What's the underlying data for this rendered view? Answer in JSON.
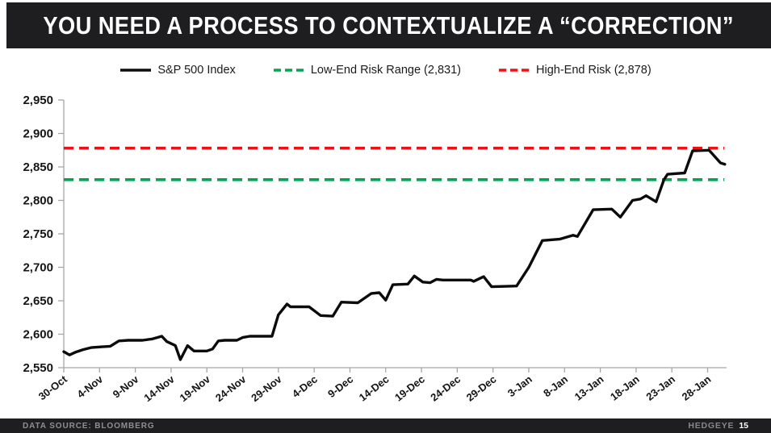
{
  "header": {
    "title": "YOU NEED A PROCESS TO CONTEXTUALIZE A “CORRECTION”"
  },
  "legend": {
    "items": [
      {
        "label": "S&P 500 Index",
        "color": "#0b0b0b",
        "style": "solid"
      },
      {
        "label": "Low-End Risk Range (2,831)",
        "color": "#00a651",
        "style": "dashed"
      },
      {
        "label": "High-End Risk (2,878)",
        "color": "#ef1016",
        "style": "dashed"
      }
    ]
  },
  "chart_data": {
    "type": "line",
    "title": "",
    "xlabel": "",
    "ylabel": "",
    "grid": false,
    "legend_position": "top",
    "y_axis": {
      "min": 2550,
      "max": 2950,
      "step": 50,
      "tick_labels": [
        "2,550",
        "2,600",
        "2,650",
        "2,700",
        "2,750",
        "2,800",
        "2,850",
        "2,900",
        "2,950"
      ]
    },
    "x_axis": {
      "tick_labels": [
        "30-Oct",
        "4-Nov",
        "9-Nov",
        "14-Nov",
        "19-Nov",
        "24-Nov",
        "29-Nov",
        "4-Dec",
        "9-Dec",
        "14-Dec",
        "19-Dec",
        "24-Dec",
        "29-Dec",
        "3-Jan",
        "8-Jan",
        "13-Jan",
        "18-Jan",
        "23-Jan",
        "28-Jan"
      ],
      "tick_days": [
        0,
        5,
        10,
        15,
        20,
        25,
        30,
        35,
        40,
        45,
        50,
        55,
        60,
        65,
        70,
        75,
        80,
        85,
        90
      ],
      "max_day": 92.4,
      "label_rotation_deg": -38
    },
    "series": [
      {
        "name": "S&P 500 Index",
        "color": "#0b0b0b",
        "x_days": [
          0,
          0.8,
          1.6,
          2.7,
          3.8,
          5,
          6.5,
          7.7,
          9,
          11,
          12.4,
          13.7,
          14.4,
          15.6,
          16.3,
          17.3,
          18.2,
          20,
          20.8,
          21.6,
          22.5,
          24.2,
          25,
          26,
          29.1,
          30,
          31.2,
          31.7,
          34.3,
          35.9,
          37.6,
          38.8,
          41.1,
          43,
          44.1,
          45,
          46,
          48.1,
          49,
          50.2,
          51.2,
          52.1,
          53,
          56.9,
          57.3,
          58.7,
          59.8,
          63.3,
          65,
          66.9,
          69.3,
          71.2,
          71.8,
          74,
          76.6,
          77.8,
          79.5,
          80.6,
          81.4,
          82.8,
          83.9,
          84.4,
          86.8,
          87.9,
          90.2,
          91.8,
          92.4
        ],
        "values": [
          2574,
          2569,
          2573,
          2577,
          2580,
          2581,
          2582,
          2590,
          2591,
          2591,
          2593,
          2597,
          2589,
          2583,
          2562,
          2583,
          2575,
          2575,
          2578,
          2590,
          2591,
          2591,
          2595,
          2597,
          2597,
          2629,
          2645,
          2641,
          2641,
          2628,
          2627,
          2648,
          2647,
          2661,
          2662,
          2651,
          2674,
          2675,
          2687,
          2678,
          2677,
          2682,
          2681,
          2681,
          2679,
          2686,
          2671,
          2672,
          2700,
          2740,
          2742,
          2748,
          2746,
          2786,
          2787,
          2775,
          2800,
          2802,
          2807,
          2798,
          2831,
          2839,
          2841,
          2874,
          2875,
          2856,
          2854
        ]
      }
    ],
    "reference_lines": [
      {
        "name": "Low-End Risk Range",
        "value": 2831,
        "color": "#00a651",
        "style": "dashed"
      },
      {
        "name": "High-End Risk",
        "value": 2878,
        "color": "#ef1016",
        "style": "dashed"
      }
    ]
  },
  "footer": {
    "source": "DATA SOURCE: BLOOMBERG",
    "brand": "HEDGEYE",
    "page": "15"
  }
}
